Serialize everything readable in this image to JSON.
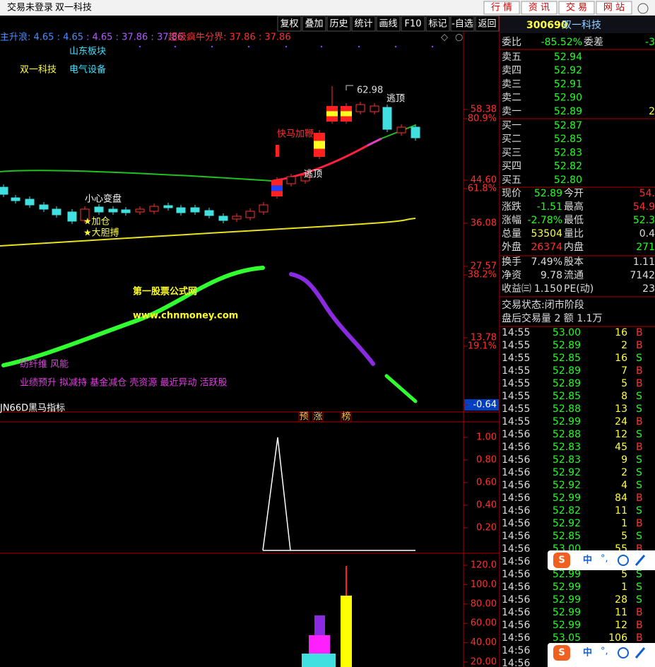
{
  "titlebar": {
    "status": "交易未登录",
    "stock": "双一科技",
    "links": [
      "行 情",
      "资 讯",
      "交 易",
      "网 站"
    ]
  },
  "toolbar": [
    "复权",
    "叠加",
    "历史",
    "统计",
    "画线",
    "F10",
    "标记",
    "-自选",
    "返回"
  ],
  "indicator_line": [
    "主升浪: 4.65 : 4.65",
    ": 4.65 : 37.86 : 37.86",
    "超级疯牛分界: 37.86 : 37.86"
  ],
  "annotations": {
    "sector": "山东板块",
    "stock": "双一科技",
    "industry": "电气设备",
    "caution": "小心变盘",
    "add": "★加仓",
    "bold": "★大胆搏",
    "speed": "快马加鞭",
    "escape1": "逃顶",
    "escape2": "逃顶",
    "high": "62.98",
    "watermark1": "第一股票公式网",
    "watermark2": "www.chnmoney.com",
    "concepts1": "纺纤维 风能",
    "concepts2": "业绩预升 拟减持 基金减仓 壳资源 最近异动 活跃股"
  },
  "price_axis": [
    "58.38",
    "80.9%",
    "44.60",
    "61.8%",
    "36.08",
    "27.57",
    "38.2%",
    "13.78",
    "19.1%",
    "-0.64"
  ],
  "sub_indicator": {
    "name": "JN66D黑马指标",
    "tags": [
      "预",
      "涨",
      "榜"
    ],
    "axis": [
      "1.00",
      "0.80",
      "0.60",
      "0.40",
      "0.20"
    ]
  },
  "volume_axis": [
    "120.0",
    "100.0",
    "80.00",
    "60.00",
    "40.00",
    "20.00"
  ],
  "quote": {
    "code": "300690",
    "name": "双一科技",
    "ratio_label": "委比",
    "ratio": "-85.52%",
    "diff_label": "委差",
    "diff": "-3",
    "asks": [
      [
        "卖五",
        "52.94"
      ],
      [
        "卖四",
        "52.92"
      ],
      [
        "卖三",
        "52.91"
      ],
      [
        "卖二",
        "52.90"
      ],
      [
        "卖一",
        "52.89",
        "2"
      ]
    ],
    "bids": [
      [
        "买一",
        "52.87"
      ],
      [
        "买二",
        "52.85"
      ],
      [
        "买三",
        "52.83"
      ],
      [
        "买四",
        "52.82"
      ],
      [
        "买五",
        "52.80"
      ]
    ],
    "stats": [
      [
        "现价",
        "52.89",
        "今开",
        "54."
      ],
      [
        "涨跌",
        "-1.51",
        "最高",
        "54.9"
      ],
      [
        "涨幅",
        "-2.78%",
        "最低",
        "52.3"
      ],
      [
        "总量",
        "53504",
        "量比",
        "0.4"
      ],
      [
        "外盘",
        "26374",
        "内盘",
        "271"
      ],
      [
        "换手",
        "7.49%",
        "股本",
        "1.11"
      ],
      [
        "净资",
        "9.78",
        "流通",
        "7142"
      ],
      [
        "收益㈢",
        "1.150",
        "PE(动)",
        "23"
      ]
    ],
    "status": "交易状态:闭市阶段",
    "after_hours": "盘后交易量 2 额 1.1万",
    "ticks": [
      [
        "14:55",
        "53.00",
        "16",
        "B"
      ],
      [
        "14:55",
        "52.89",
        "2",
        "B"
      ],
      [
        "14:55",
        "52.85",
        "16",
        "S"
      ],
      [
        "14:55",
        "52.89",
        "7",
        "B"
      ],
      [
        "14:55",
        "52.89",
        "5",
        "B"
      ],
      [
        "14:55",
        "52.85",
        "8",
        "S"
      ],
      [
        "14:55",
        "52.88",
        "13",
        "S"
      ],
      [
        "14:55",
        "52.99",
        "24",
        "B"
      ],
      [
        "14:56",
        "52.88",
        "12",
        "S"
      ],
      [
        "14:56",
        "52.83",
        "45",
        "B"
      ],
      [
        "14:56",
        "52.83",
        "9",
        "S"
      ],
      [
        "14:56",
        "52.92",
        "2",
        "S"
      ],
      [
        "14:56",
        "52.92",
        "4",
        "S"
      ],
      [
        "14:56",
        "52.99",
        "84",
        "B"
      ],
      [
        "14:56",
        "52.82",
        "11",
        "S"
      ],
      [
        "14:56",
        "52.92",
        "1",
        "B"
      ],
      [
        "14:56",
        "52.85",
        "5",
        "S"
      ],
      [
        "14:56",
        "53.00",
        "55",
        "B"
      ],
      [
        "14:56"
      ],
      [
        "14:56",
        "52.99",
        "5",
        "S"
      ],
      [
        "14:56",
        "52.99",
        "1",
        "S"
      ],
      [
        "14:56",
        "52.99",
        "28",
        "S"
      ],
      [
        "14:56",
        "52.99",
        "11",
        "B"
      ],
      [
        "14:56",
        "52.99",
        "12",
        "B"
      ],
      [
        "14:56",
        "53.05",
        "106",
        "B"
      ],
      [
        "14:56"
      ],
      [
        "14:56"
      ]
    ]
  },
  "ime": {
    "label": "中",
    "punct": "°,"
  }
}
